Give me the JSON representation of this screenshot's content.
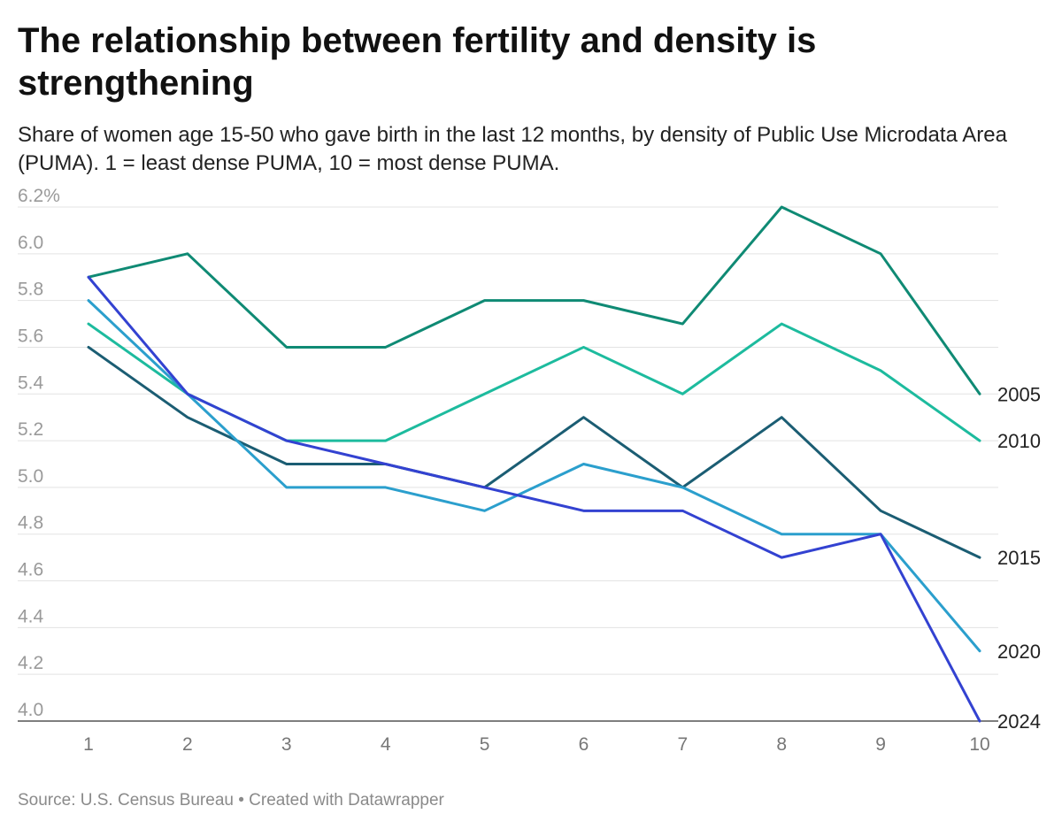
{
  "header": {
    "title": "The relationship between fertility and density is strengthening",
    "subtitle": "Share of women age 15-50 who gave birth in the last 12 months, by density of Public Use Microdata Area (PUMA). 1 = least dense PUMA, 10 = most dense PUMA."
  },
  "footer": {
    "source": "Source: U.S. Census Bureau • Created with Datawrapper"
  },
  "chart_data": {
    "type": "line",
    "title": "The relationship between fertility and density is strengthening",
    "subtitle": "Share of women age 15-50 who gave birth in the last 12 months, by density of Public Use Microdata Area (PUMA). 1 = least dense PUMA, 10 = most dense PUMA.",
    "xlabel": "",
    "ylabel": "",
    "x": [
      1,
      2,
      3,
      4,
      5,
      6,
      7,
      8,
      9,
      10
    ],
    "x_tick_labels": [
      "1",
      "2",
      "3",
      "4",
      "5",
      "6",
      "7",
      "8",
      "9",
      "10"
    ],
    "ylim": [
      4.0,
      6.2
    ],
    "y_ticks": [
      4.0,
      4.2,
      4.4,
      4.6,
      4.8,
      5.0,
      5.2,
      5.4,
      5.6,
      5.8,
      6.0,
      6.2
    ],
    "y_tick_labels": [
      "4.0",
      "4.2",
      "4.4",
      "4.6",
      "4.8",
      "5.0",
      "5.2",
      "5.4",
      "5.6",
      "5.8",
      "6.0",
      "6.2%"
    ],
    "grid": true,
    "legend": "direct labels at right end of lines",
    "series": [
      {
        "name": "2005",
        "color": "#0f8a74",
        "values": [
          5.9,
          6.0,
          5.6,
          5.6,
          5.8,
          5.8,
          5.7,
          6.2,
          6.0,
          5.4
        ]
      },
      {
        "name": "2010",
        "color": "#1dbb9e",
        "values": [
          5.7,
          5.4,
          5.2,
          5.2,
          5.4,
          5.6,
          5.4,
          5.7,
          5.5,
          5.2
        ]
      },
      {
        "name": "2015",
        "color": "#1b5d73",
        "values": [
          5.6,
          5.3,
          5.1,
          5.1,
          5.0,
          5.3,
          5.0,
          5.3,
          4.9,
          4.7
        ]
      },
      {
        "name": "2020",
        "color": "#2b9fcd",
        "values": [
          5.8,
          5.4,
          5.0,
          5.0,
          4.9,
          5.1,
          5.0,
          4.8,
          4.8,
          4.3
        ]
      },
      {
        "name": "2024",
        "color": "#3342d1",
        "values": [
          5.9,
          5.4,
          5.2,
          5.1,
          5.0,
          4.9,
          4.9,
          4.7,
          4.8,
          4.0
        ]
      }
    ]
  }
}
